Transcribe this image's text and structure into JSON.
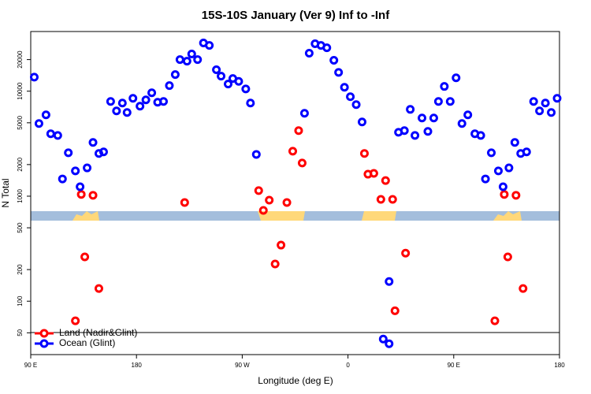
{
  "chart_data": {
    "type": "scatter",
    "title": "15S-10S January (Ver 9)   Inf to -Inf",
    "x_label": "Longitude (deg E)",
    "y_label": "N Total",
    "log_scale_y": true,
    "xlim": [
      90,
      540
    ],
    "ylim": [
      31,
      37000
    ],
    "xticks": [
      {
        "value": 90,
        "label": "90 E"
      },
      180,
      {
        "value": 270,
        "label": "90 W"
      },
      {
        "value": 360,
        "label": "0"
      },
      {
        "value": 450,
        "label": "90 E"
      },
      {
        "value": 540,
        "label": "180"
      }
    ],
    "yticks": [
      50,
      100,
      200,
      500,
      1000,
      2000,
      5000,
      10000,
      20000
    ],
    "legend_position": "bottom-left",
    "series": [
      {
        "name": "Land (Nadir&Glint)",
        "color": "#ff0000",
        "x": [
          128,
          133,
          136,
          143,
          148,
          221,
          284,
          288,
          293,
          298,
          303,
          308,
          313,
          318,
          321,
          374,
          377,
          382,
          388,
          392,
          398,
          400,
          409,
          485,
          493,
          496,
          503,
          509
        ],
        "values": [
          65,
          1040,
          264,
          1020,
          132,
          871,
          1130,
          732,
          917,
          226,
          342,
          871,
          2680,
          4210,
          2070,
          2550,
          1620,
          1650,
          933,
          1410,
          933,
          81,
          287,
          65,
          1040,
          264,
          1020,
          132
        ]
      },
      {
        "name": "Ocean (Glint)",
        "color": "#0000ff",
        "x": [
          93,
          97,
          103,
          107,
          113,
          117,
          122,
          128,
          132,
          138,
          143,
          148,
          152,
          158,
          163,
          168,
          172,
          177,
          183,
          188,
          193,
          198,
          203,
          208,
          213,
          217,
          223,
          227,
          232,
          237,
          242,
          248,
          252,
          258,
          262,
          267,
          273,
          277,
          282,
          323,
          327,
          332,
          337,
          342,
          348,
          352,
          357,
          362,
          367,
          372,
          390,
          395,
          395,
          403,
          408,
          413,
          417,
          423,
          428,
          433,
          437,
          442,
          447,
          452,
          457,
          462,
          468,
          473,
          477,
          482,
          488,
          492,
          497,
          502,
          507,
          512,
          518,
          523,
          528,
          533,
          538
        ],
        "values": [
          13600,
          4920,
          5950,
          3930,
          3790,
          1460,
          2590,
          1740,
          1230,
          1860,
          3250,
          2550,
          2640,
          7980,
          6490,
          7710,
          6270,
          8550,
          7200,
          8260,
          9660,
          7850,
          7980,
          11300,
          14400,
          20000,
          19300,
          22600,
          20000,
          28800,
          27300,
          16000,
          13900,
          11700,
          13200,
          12400,
          10500,
          7710,
          2500,
          6160,
          23000,
          28300,
          27300,
          25900,
          19700,
          15100,
          10900,
          8860,
          7450,
          5090,
          43.6,
          154,
          39.3,
          4060,
          4210,
          6710,
          3790,
          5550,
          4140,
          5550,
          7980,
          11100,
          7980,
          13400,
          4920,
          5950,
          3930,
          3790,
          1460,
          2590,
          1740,
          1230,
          1860,
          3250,
          2550,
          2640,
          7980,
          6490,
          7710,
          6270,
          8550
        ]
      }
    ]
  }
}
